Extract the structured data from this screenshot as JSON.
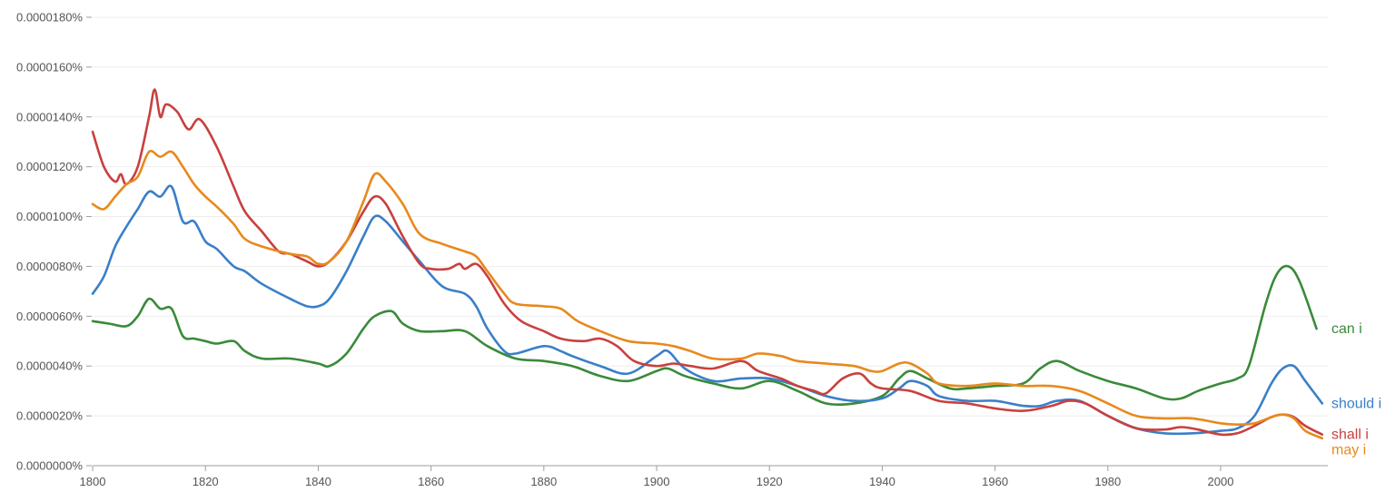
{
  "chart_data": {
    "type": "line",
    "xlim": [
      1800,
      2019
    ],
    "ylim": [
      0,
      1.8e-07
    ],
    "grid": true,
    "x_ticks": [
      {
        "value": 1800,
        "label": "1800"
      },
      {
        "value": 1820,
        "label": "1820"
      },
      {
        "value": 1840,
        "label": "1840"
      },
      {
        "value": 1860,
        "label": "1860"
      },
      {
        "value": 1880,
        "label": "1880"
      },
      {
        "value": 1900,
        "label": "1900"
      },
      {
        "value": 1920,
        "label": "1920"
      },
      {
        "value": 1940,
        "label": "1940"
      },
      {
        "value": 1960,
        "label": "1960"
      },
      {
        "value": 1980,
        "label": "1980"
      },
      {
        "value": 2000,
        "label": "2000"
      }
    ],
    "y_ticks": [
      {
        "value": 0,
        "label": "0.0000000%"
      },
      {
        "value": 2e-08,
        "label": "0.0000020%"
      },
      {
        "value": 4e-08,
        "label": "0.0000040%"
      },
      {
        "value": 6e-08,
        "label": "0.0000060%"
      },
      {
        "value": 8e-08,
        "label": "0.0000080%"
      },
      {
        "value": 1e-07,
        "label": "0.0000100%"
      },
      {
        "value": 1.2e-07,
        "label": "0.0000120%"
      },
      {
        "value": 1.4e-07,
        "label": "0.0000140%"
      },
      {
        "value": 1.6e-07,
        "label": "0.0000160%"
      },
      {
        "value": 1.8e-07,
        "label": "0.0000180%"
      }
    ],
    "series": [
      {
        "name": "can i",
        "color": "#3a8a3a",
        "x": [
          1800,
          1803,
          1806,
          1808,
          1810,
          1812,
          1814,
          1816,
          1818,
          1820,
          1822,
          1825,
          1827,
          1830,
          1835,
          1840,
          1842,
          1845,
          1848,
          1850,
          1853,
          1855,
          1858,
          1862,
          1866,
          1870,
          1875,
          1880,
          1885,
          1890,
          1895,
          1900,
          1902,
          1905,
          1910,
          1915,
          1920,
          1925,
          1930,
          1935,
          1940,
          1943,
          1945,
          1948,
          1952,
          1955,
          1960,
          1965,
          1968,
          1971,
          1975,
          1980,
          1985,
          1990,
          1993,
          1996,
          2000,
          2003,
          2005,
          2008,
          2010,
          2012,
          2014,
          2017
        ],
        "y": [
          5.8e-08,
          5.7e-08,
          5.6e-08,
          6e-08,
          6.7e-08,
          6.3e-08,
          6.3e-08,
          5.2e-08,
          5.1e-08,
          5e-08,
          4.9e-08,
          5e-08,
          4.6e-08,
          4.3e-08,
          4.3e-08,
          4.1e-08,
          4e-08,
          4.5e-08,
          5.5e-08,
          6e-08,
          6.2e-08,
          5.7e-08,
          5.4e-08,
          5.4e-08,
          5.4e-08,
          4.8e-08,
          4.3e-08,
          4.2e-08,
          4e-08,
          3.6e-08,
          3.4e-08,
          3.8e-08,
          3.9e-08,
          3.6e-08,
          3.3e-08,
          3.1e-08,
          3.4e-08,
          3e-08,
          2.5e-08,
          2.5e-08,
          2.8e-08,
          3.5e-08,
          3.8e-08,
          3.5e-08,
          3.1e-08,
          3.1e-08,
          3.2e-08,
          3.3e-08,
          3.9e-08,
          4.2e-08,
          3.8e-08,
          3.4e-08,
          3.1e-08,
          2.7e-08,
          2.7e-08,
          3e-08,
          3.3e-08,
          3.5e-08,
          4e-08,
          6.5e-08,
          7.7e-08,
          8e-08,
          7.4e-08,
          5.5e-08
        ]
      },
      {
        "name": "should i",
        "color": "#3a7fc8",
        "x": [
          1800,
          1802,
          1804,
          1806,
          1808,
          1810,
          1812,
          1814,
          1816,
          1818,
          1820,
          1822,
          1825,
          1827,
          1830,
          1835,
          1838,
          1840,
          1842,
          1845,
          1848,
          1850,
          1852,
          1855,
          1858,
          1862,
          1866,
          1868,
          1870,
          1873,
          1875,
          1880,
          1883,
          1885,
          1890,
          1895,
          1900,
          1902,
          1905,
          1910,
          1915,
          1920,
          1925,
          1930,
          1935,
          1940,
          1943,
          1945,
          1948,
          1950,
          1955,
          1960,
          1965,
          1968,
          1971,
          1975,
          1980,
          1985,
          1990,
          1995,
          2000,
          2003,
          2006,
          2009,
          2011,
          2013,
          2015,
          2018
        ],
        "y": [
          6.9e-08,
          7.6e-08,
          8.8e-08,
          9.6e-08,
          1.03e-07,
          1.1e-07,
          1.08e-07,
          1.12e-07,
          9.8e-08,
          9.8e-08,
          9e-08,
          8.7e-08,
          8e-08,
          7.8e-08,
          7.3e-08,
          6.7e-08,
          6.4e-08,
          6.4e-08,
          6.7e-08,
          7.8e-08,
          9.2e-08,
          1e-07,
          9.8e-08,
          9e-08,
          8.2e-08,
          7.2e-08,
          6.9e-08,
          6.4e-08,
          5.5e-08,
          4.6e-08,
          4.5e-08,
          4.8e-08,
          4.6e-08,
          4.4e-08,
          4e-08,
          3.7e-08,
          4.4e-08,
          4.6e-08,
          3.9e-08,
          3.4e-08,
          3.5e-08,
          3.5e-08,
          3.2e-08,
          2.8e-08,
          2.6e-08,
          2.7e-08,
          3.1e-08,
          3.4e-08,
          3.2e-08,
          2.8e-08,
          2.6e-08,
          2.6e-08,
          2.4e-08,
          2.4e-08,
          2.6e-08,
          2.6e-08,
          2e-08,
          1.5e-08,
          1.3e-08,
          1.3e-08,
          1.4e-08,
          1.5e-08,
          2e-08,
          3.3e-08,
          3.9e-08,
          4e-08,
          3.4e-08,
          2.5e-08
        ]
      },
      {
        "name": "shall i",
        "color": "#c8403f",
        "x": [
          1800,
          1802,
          1804,
          1805,
          1806,
          1808,
          1810,
          1811,
          1812,
          1813,
          1815,
          1817,
          1819,
          1822,
          1825,
          1827,
          1830,
          1833,
          1835,
          1838,
          1840,
          1842,
          1845,
          1848,
          1850,
          1852,
          1855,
          1858,
          1860,
          1863,
          1865,
          1866,
          1868,
          1870,
          1873,
          1876,
          1880,
          1883,
          1887,
          1890,
          1893,
          1896,
          1900,
          1903,
          1906,
          1910,
          1915,
          1918,
          1922,
          1925,
          1928,
          1930,
          1933,
          1936,
          1938,
          1940,
          1945,
          1950,
          1955,
          1960,
          1965,
          1970,
          1973,
          1976,
          1980,
          1985,
          1990,
          1993,
          1996,
          2000,
          2003,
          2006,
          2009,
          2011,
          2013,
          2015,
          2018
        ],
        "y": [
          1.34e-07,
          1.2e-07,
          1.14e-07,
          1.17e-07,
          1.13e-07,
          1.2e-07,
          1.4e-07,
          1.51e-07,
          1.4e-07,
          1.45e-07,
          1.42e-07,
          1.35e-07,
          1.39e-07,
          1.28e-07,
          1.12e-07,
          1.02e-07,
          9.4e-08,
          8.6e-08,
          8.5e-08,
          8.2e-08,
          8e-08,
          8.2e-08,
          9e-08,
          1.02e-07,
          1.08e-07,
          1.05e-07,
          9.2e-08,
          8.1e-08,
          7.9e-08,
          7.9e-08,
          8.1e-08,
          7.9e-08,
          8.1e-08,
          7.6e-08,
          6.5e-08,
          5.8e-08,
          5.4e-08,
          5.1e-08,
          5e-08,
          5.1e-08,
          4.8e-08,
          4.2e-08,
          4e-08,
          4.1e-08,
          4e-08,
          3.9e-08,
          4.2e-08,
          3.8e-08,
          3.5e-08,
          3.2e-08,
          3e-08,
          2.9e-08,
          3.5e-08,
          3.7e-08,
          3.3e-08,
          3.1e-08,
          3e-08,
          2.6e-08,
          2.5e-08,
          2.3e-08,
          2.2e-08,
          2.4e-08,
          2.6e-08,
          2.5e-08,
          2e-08,
          1.5e-08,
          1.45e-08,
          1.55e-08,
          1.45e-08,
          1.25e-08,
          1.3e-08,
          1.6e-08,
          1.95e-08,
          2.05e-08,
          1.95e-08,
          1.6e-08,
          1.25e-08
        ]
      },
      {
        "name": "may i",
        "color": "#e8891c",
        "x": [
          1800,
          1802,
          1804,
          1806,
          1808,
          1810,
          1812,
          1814,
          1816,
          1818,
          1820,
          1822,
          1825,
          1827,
          1830,
          1835,
          1838,
          1840,
          1842,
          1845,
          1848,
          1850,
          1852,
          1855,
          1858,
          1862,
          1866,
          1868,
          1870,
          1873,
          1875,
          1880,
          1883,
          1886,
          1890,
          1895,
          1900,
          1903,
          1906,
          1910,
          1915,
          1918,
          1922,
          1925,
          1930,
          1935,
          1938,
          1940,
          1943,
          1945,
          1948,
          1950,
          1955,
          1960,
          1965,
          1970,
          1975,
          1980,
          1985,
          1990,
          1995,
          2000,
          2003,
          2006,
          2009,
          2011,
          2013,
          2015,
          2018
        ],
        "y": [
          1.05e-07,
          1.03e-07,
          1.08e-07,
          1.13e-07,
          1.16e-07,
          1.26e-07,
          1.24e-07,
          1.26e-07,
          1.2e-07,
          1.13e-07,
          1.08e-07,
          1.04e-07,
          9.7e-08,
          9.1e-08,
          8.8e-08,
          8.5e-08,
          8.4e-08,
          8.1e-08,
          8.2e-08,
          9e-08,
          1.06e-07,
          1.17e-07,
          1.14e-07,
          1.05e-07,
          9.3e-08,
          8.9e-08,
          8.6e-08,
          8.4e-08,
          7.8e-08,
          6.9e-08,
          6.5e-08,
          6.4e-08,
          6.3e-08,
          5.8e-08,
          5.4e-08,
          5e-08,
          4.9e-08,
          4.8e-08,
          4.6e-08,
          4.3e-08,
          4.3e-08,
          4.5e-08,
          4.4e-08,
          4.2e-08,
          4.1e-08,
          4e-08,
          3.8e-08,
          3.8e-08,
          4.1e-08,
          4.1e-08,
          3.7e-08,
          3.3e-08,
          3.2e-08,
          3.3e-08,
          3.2e-08,
          3.2e-08,
          3e-08,
          2.5e-08,
          2e-08,
          1.9e-08,
          1.9e-08,
          1.7e-08,
          1.65e-08,
          1.7e-08,
          1.95e-08,
          2.05e-08,
          1.9e-08,
          1.4e-08,
          1.1e-08
        ]
      }
    ]
  }
}
